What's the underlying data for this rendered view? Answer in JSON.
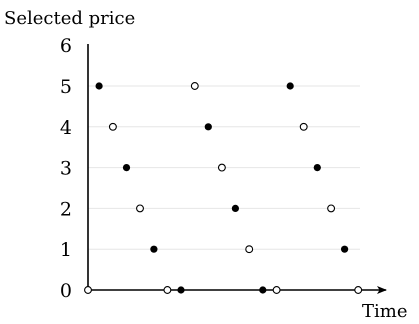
{
  "chart_data": {
    "type": "scatter",
    "title": "",
    "ylabel": "Selected price",
    "xlabel": "Time",
    "y_ticks": [
      "0",
      "1",
      "2",
      "3",
      "4",
      "5",
      "6"
    ],
    "ylim": [
      0,
      6
    ],
    "xlim": [
      0,
      100
    ],
    "grid": true,
    "legend": "none",
    "series": [
      {
        "marker": "filled-circle",
        "color": "#000000",
        "points": [
          {
            "x": 4.1,
            "y": 5
          },
          {
            "x": 14.2,
            "y": 3
          },
          {
            "x": 24.3,
            "y": 1
          },
          {
            "x": 34.3,
            "y": 0
          },
          {
            "x": 44.4,
            "y": 4
          },
          {
            "x": 54.4,
            "y": 2
          },
          {
            "x": 64.5,
            "y": 0
          },
          {
            "x": 74.6,
            "y": 5
          },
          {
            "x": 84.6,
            "y": 3
          },
          {
            "x": 94.7,
            "y": 1
          }
        ]
      },
      {
        "marker": "open-circle",
        "color": "#000000",
        "points": [
          {
            "x": 0.0,
            "y": 0
          },
          {
            "x": 9.2,
            "y": 4
          },
          {
            "x": 19.2,
            "y": 2
          },
          {
            "x": 29.3,
            "y": 0
          },
          {
            "x": 39.4,
            "y": 5
          },
          {
            "x": 49.4,
            "y": 3
          },
          {
            "x": 59.5,
            "y": 1
          },
          {
            "x": 69.6,
            "y": 0
          },
          {
            "x": 79.6,
            "y": 4
          },
          {
            "x": 89.7,
            "y": 2
          },
          {
            "x": 99.7,
            "y": 0
          }
        ]
      }
    ]
  }
}
